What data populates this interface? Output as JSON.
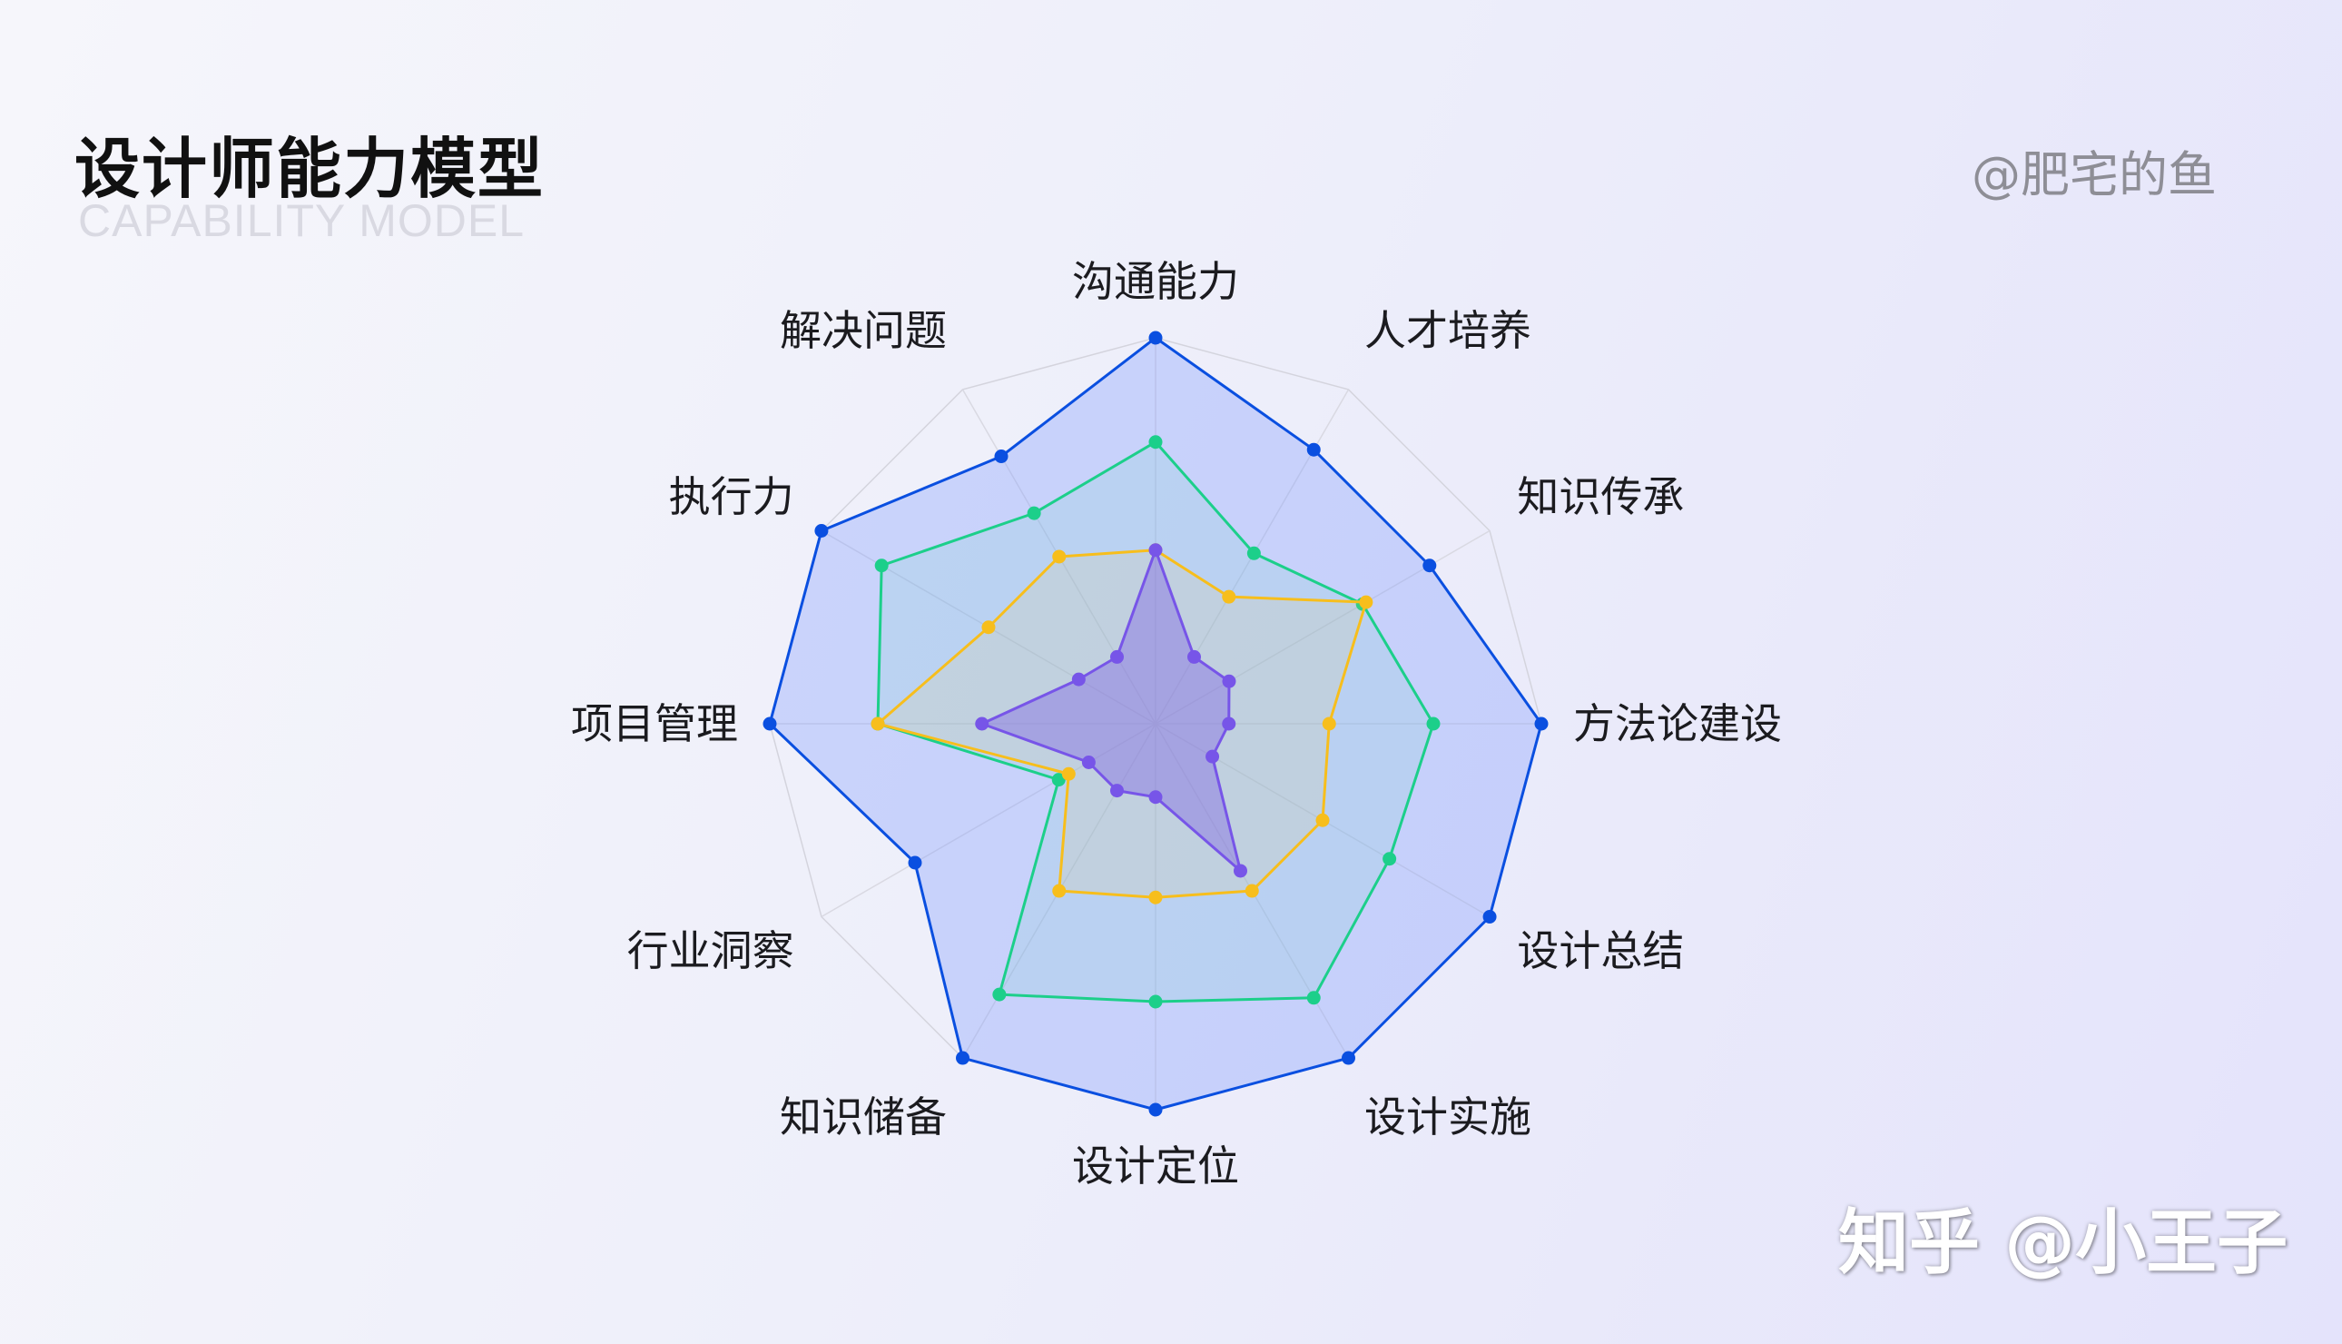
{
  "header": {
    "title": "设计师能力模型",
    "subtitle": "CAPABILITY MODEL",
    "author": "@肥宅的鱼"
  },
  "watermark": "知乎 @小王子",
  "chart_data": {
    "type": "radar",
    "title": "设计师能力模型",
    "subtitle": "CAPABILITY MODEL",
    "axes": [
      "沟通能力",
      "人才培养",
      "知识传承",
      "方法论建设",
      "设计总结",
      "设计实施",
      "设计定位",
      "知识储备",
      "行业洞察",
      "项目管理",
      "执行力",
      "解决问题"
    ],
    "rmax": 10,
    "grid": true,
    "grid_levels": 1,
    "series": [
      {
        "color": "#0a4fe0",
        "fill": "rgba(120,150,255,0.32)",
        "values": [
          10,
          8.2,
          8.2,
          10,
          10,
          10,
          10,
          10,
          7.2,
          10,
          10,
          8.0
        ]
      },
      {
        "color": "#1ccf8a",
        "fill": "rgba(90,210,180,0.12)",
        "values": [
          7.3,
          5.1,
          6.2,
          7.2,
          7.0,
          8.2,
          7.2,
          8.1,
          2.9,
          7.2,
          8.2,
          6.3
        ]
      },
      {
        "color": "#f7be1c",
        "fill": "rgba(247,205,90,0.12)",
        "values": [
          4.5,
          3.8,
          6.3,
          4.5,
          5.0,
          5.0,
          4.5,
          5.0,
          2.6,
          7.2,
          5.0,
          5.0
        ]
      },
      {
        "color": "#7755e8",
        "fill": "rgba(120,90,230,0.38)",
        "values": [
          4.5,
          2.0,
          2.2,
          1.9,
          1.7,
          4.4,
          1.9,
          2.0,
          2.0,
          4.5,
          2.3,
          2.0
        ]
      }
    ]
  }
}
